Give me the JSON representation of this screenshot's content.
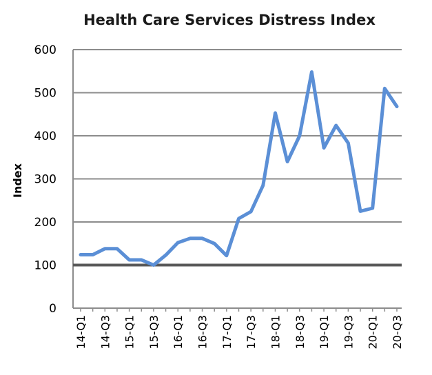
{
  "chart_data": {
    "type": "line",
    "title": "Health Care Services Distress Index",
    "xlabel": "",
    "ylabel": "Index",
    "ylim": [
      0,
      600
    ],
    "yticks": [
      "0",
      "100",
      "200",
      "300",
      "400",
      "500",
      "600"
    ],
    "categories": [
      "14-Q1",
      "14-Q2",
      "14-Q3",
      "14-Q4",
      "15-Q1",
      "15-Q2",
      "15-Q3",
      "15-Q4",
      "16-Q1",
      "16-Q2",
      "16-Q3",
      "16-Q4",
      "17-Q1",
      "17-Q2",
      "17-Q3",
      "17-Q4",
      "18-Q1",
      "18-Q2",
      "18-Q3",
      "18-Q4",
      "19-Q1",
      "19-Q2",
      "19-Q3",
      "19-Q4",
      "20-Q1",
      "20-Q2",
      "20-Q3"
    ],
    "xtick_labels": [
      "14-Q1",
      "",
      "14-Q3",
      "",
      "15-Q1",
      "",
      "15-Q3",
      "",
      "16-Q1",
      "",
      "16-Q3",
      "",
      "17-Q1",
      "",
      "17-Q3",
      "",
      "18-Q1",
      "",
      "18-Q3",
      "",
      "19-Q1",
      "",
      "19-Q3",
      "",
      "20-Q1",
      "",
      "20-Q3"
    ],
    "series": [
      {
        "values": [
          124,
          124,
          138,
          138,
          112,
          112,
          100,
          123,
          152,
          162,
          162,
          150,
          122,
          208,
          224,
          285,
          453,
          340,
          400,
          548,
          372,
          424,
          383,
          225,
          232,
          510,
          468
        ]
      }
    ],
    "reference_line": 100,
    "grid": true,
    "legend": "none",
    "colors": {
      "line": "#5b8fd6",
      "grid": "#8c8c8c",
      "baseline": "#595959",
      "title": "#1a1a1a"
    }
  }
}
